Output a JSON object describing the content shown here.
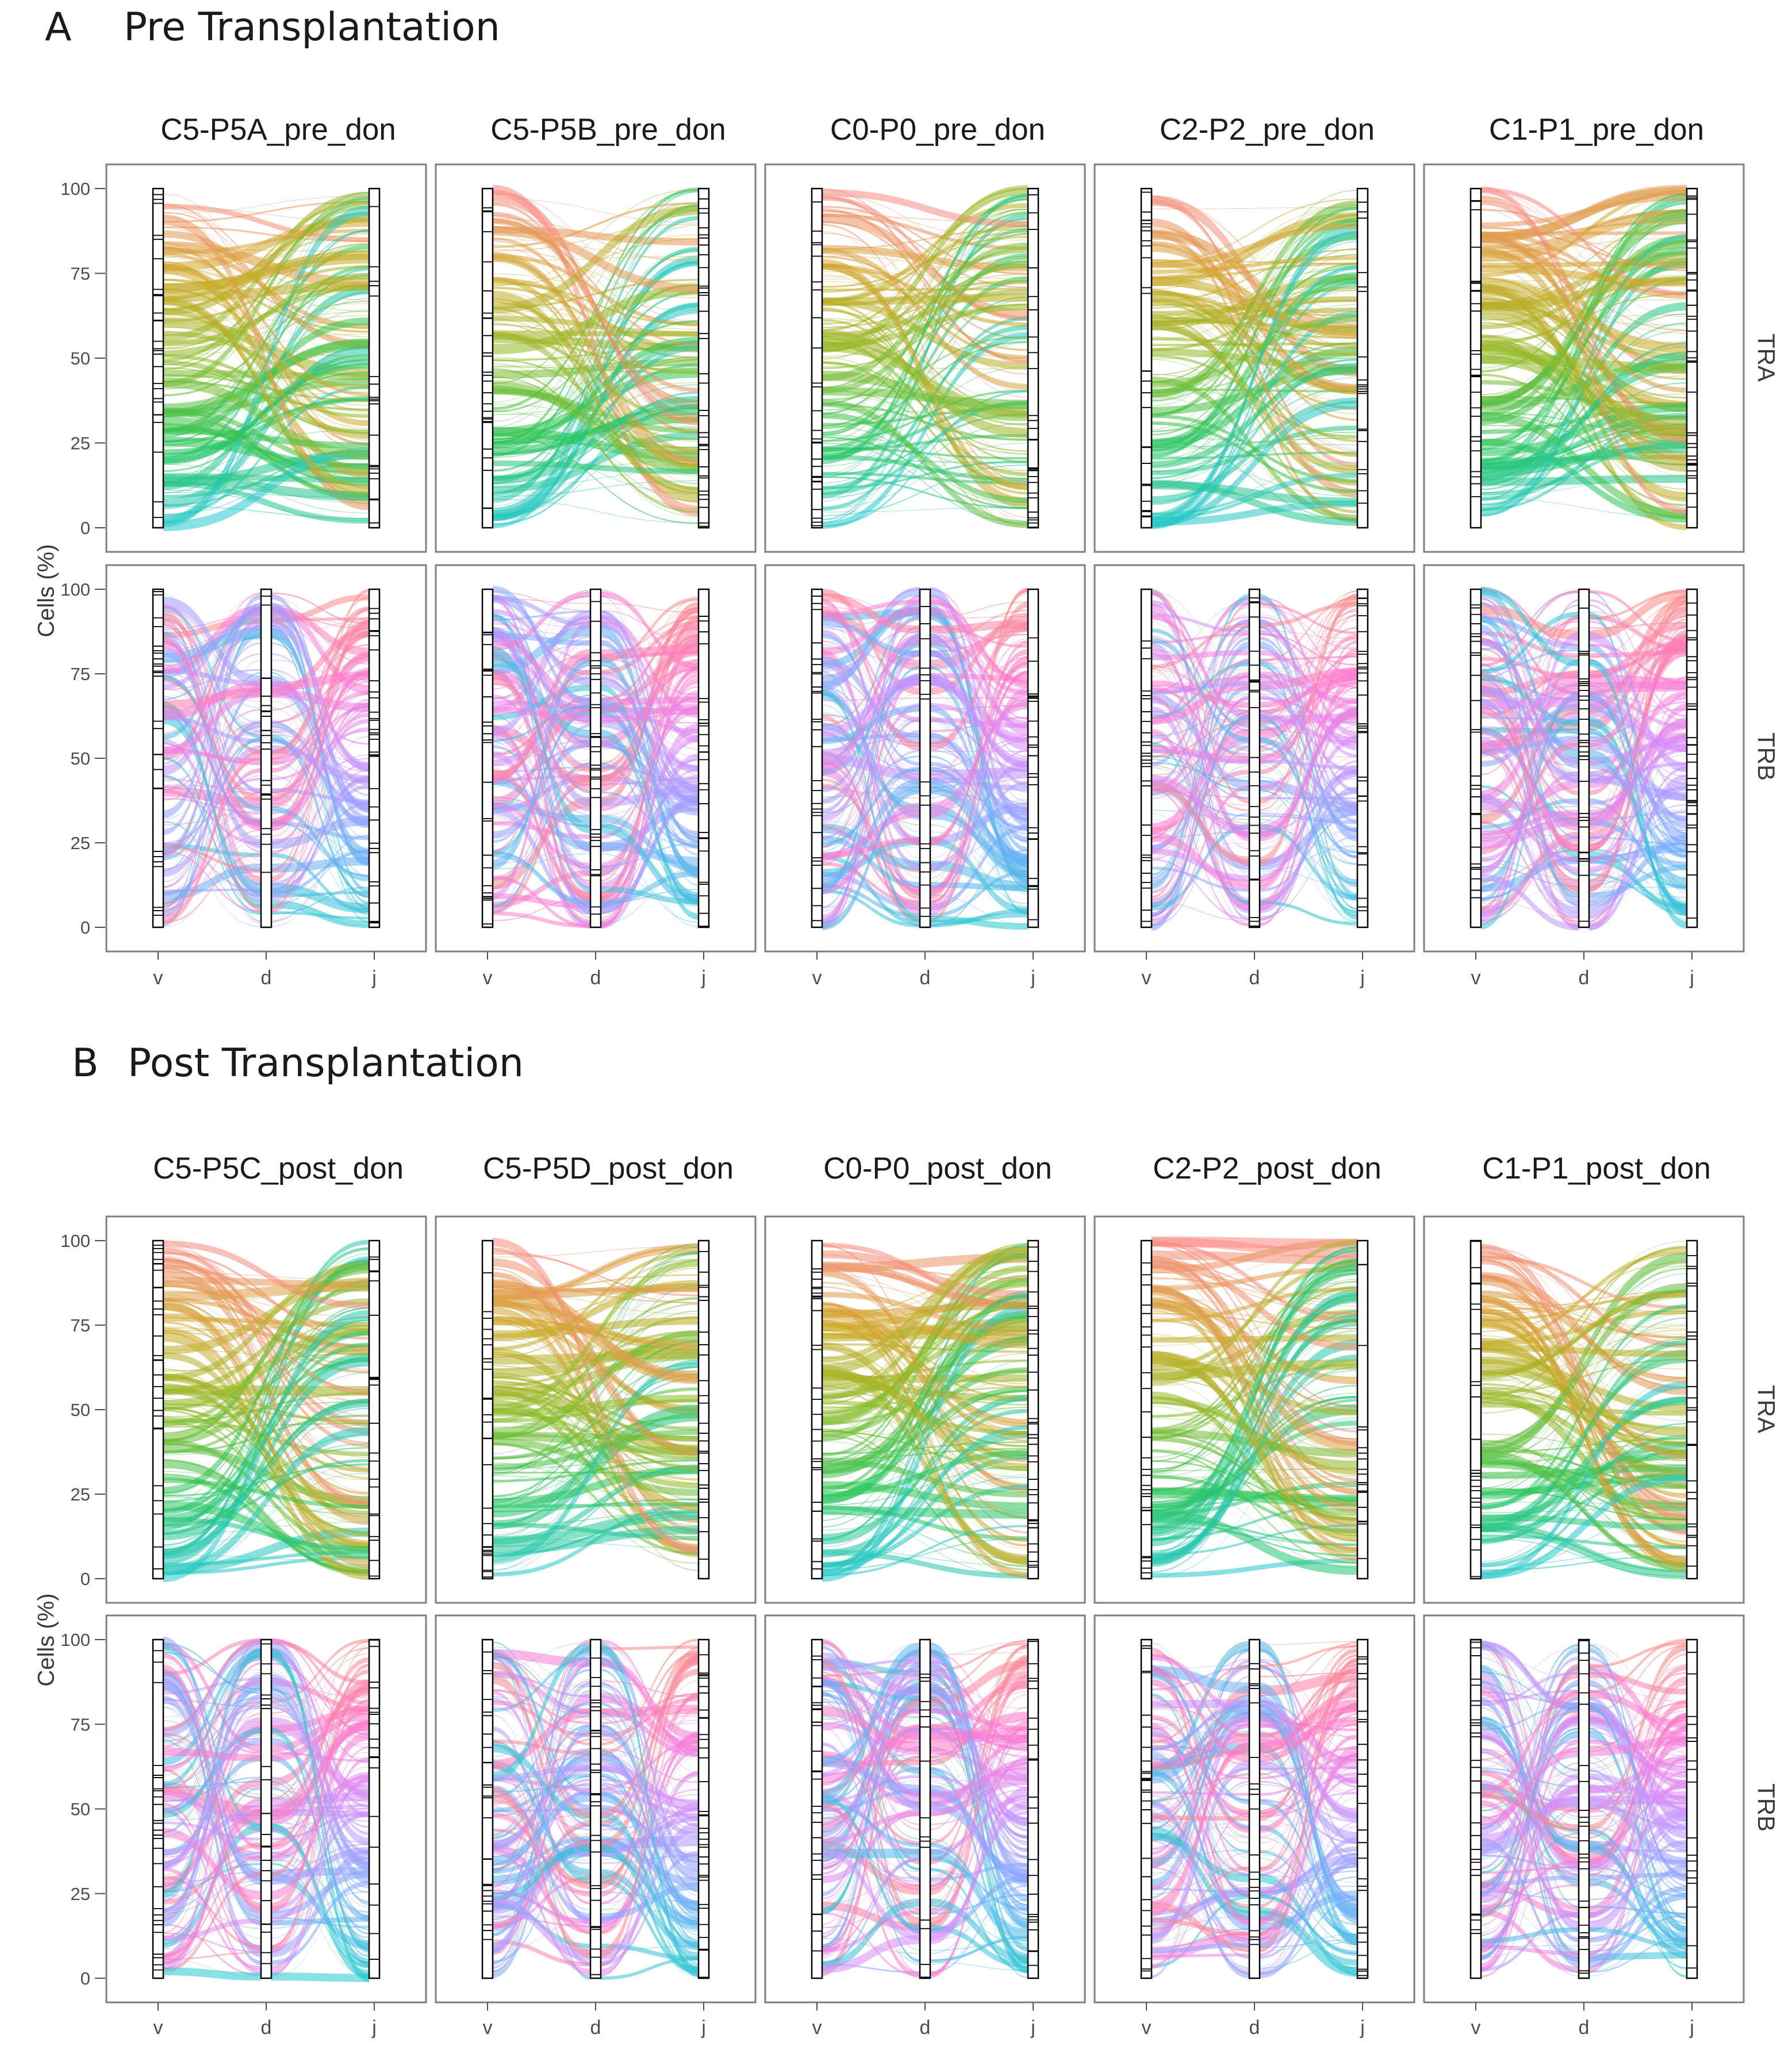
{
  "figure": {
    "section_a": {
      "letter": "A",
      "title": "Pre Transplantation"
    },
    "section_b": {
      "letter": "B",
      "title": "Post Transplantation"
    }
  },
  "chart_data": [
    {
      "type": "alluvial",
      "section": "A",
      "facets_columns": [
        "C5-P5A_pre_don",
        "C5-P5B_pre_don",
        "C0-P0_pre_don",
        "C2-P2_pre_don",
        "C1-P1_pre_don"
      ],
      "facets_rows": [
        "TRA",
        "TRB"
      ],
      "ylabel": "Cells (%)",
      "yticks": [
        0,
        25,
        50,
        75,
        100
      ],
      "ylim": [
        0,
        100
      ],
      "axes": {
        "TRA": [
          "v",
          "j"
        ],
        "TRB": [
          "v",
          "d",
          "j"
        ]
      },
      "x_tick_labels": [
        "v",
        "d",
        "j"
      ],
      "palettes": {
        "TRA": [
          "#00BFC4",
          "#00BA38",
          "#7CAE00",
          "#C59900",
          "#F8766D"
        ],
        "TRB": [
          "#F8766D",
          "#FF61C3",
          "#C77CFF",
          "#619CFF",
          "#00BFC4"
        ]
      }
    },
    {
      "type": "alluvial",
      "section": "B",
      "facets_columns": [
        "C5-P5C_post_don",
        "C5-P5D_post_don",
        "C0-P0_post_don",
        "C2-P2_post_don",
        "C1-P1_post_don"
      ],
      "facets_rows": [
        "TRA",
        "TRB"
      ],
      "ylabel": "Cells (%)",
      "yticks": [
        0,
        25,
        50,
        75,
        100
      ],
      "ylim": [
        0,
        100
      ],
      "axes": {
        "TRA": [
          "v",
          "j"
        ],
        "TRB": [
          "v",
          "d",
          "j"
        ]
      },
      "x_tick_labels": [
        "v",
        "d",
        "j"
      ],
      "palettes": {
        "TRA": [
          "#00BFC4",
          "#00BA38",
          "#7CAE00",
          "#C59900",
          "#F8766D"
        ],
        "TRB": [
          "#F8766D",
          "#FF61C3",
          "#C77CFF",
          "#619CFF",
          "#00BFC4"
        ]
      }
    }
  ]
}
